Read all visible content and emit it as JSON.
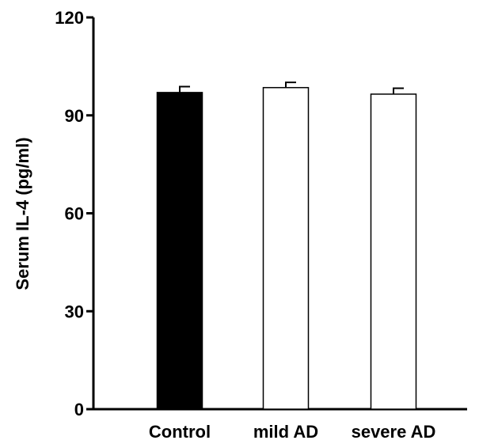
{
  "chart_data": {
    "type": "bar",
    "title": "",
    "xlabel": "",
    "ylabel": "Serum IL-4 (pg/ml)",
    "categories": [
      "Control",
      "mild AD",
      "severe AD"
    ],
    "values": [
      97,
      98.5,
      96.5
    ],
    "errors": [
      1.8,
      1.6,
      1.8
    ],
    "bar_fill": [
      "#000000",
      "#ffffff",
      "#ffffff"
    ],
    "ylim": [
      0,
      120
    ],
    "yticks": [
      0,
      30,
      60,
      90,
      120
    ],
    "ytick_labels": [
      "0",
      "30",
      "60",
      "90",
      "120"
    ],
    "grid": false,
    "legend": "none"
  }
}
